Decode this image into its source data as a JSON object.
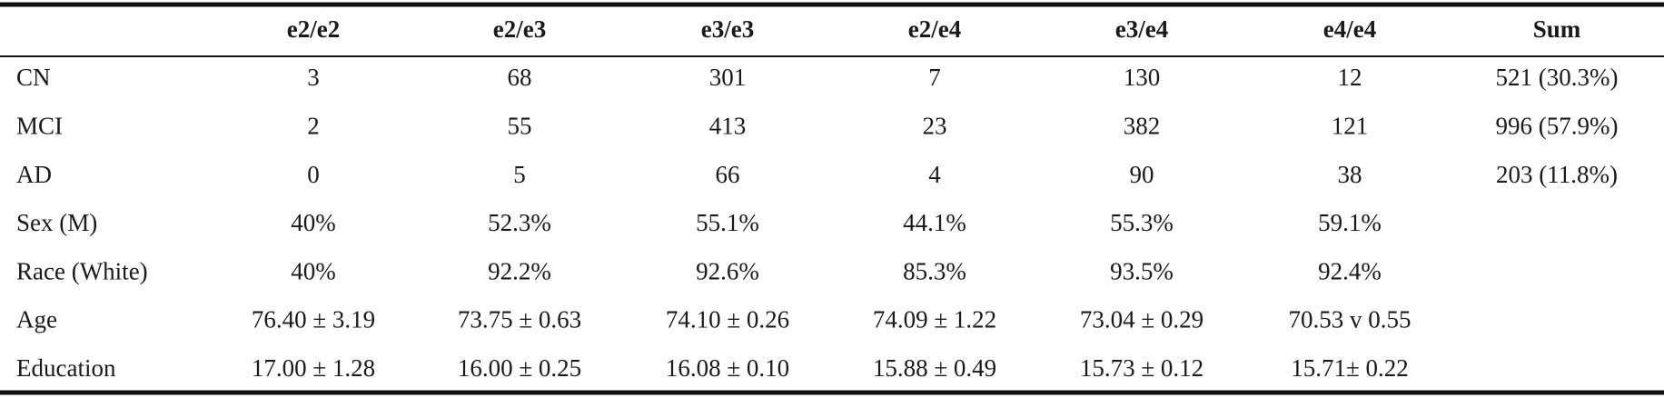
{
  "table": {
    "header": [
      "e2/e2",
      "e2/e3",
      "e3/e3",
      "e2/e4",
      "e3/e4",
      "e4/e4",
      "Sum"
    ],
    "rows": [
      {
        "label": "CN",
        "cells": [
          "3",
          "68",
          "301",
          "7",
          "130",
          "12",
          "521 (30.3%)"
        ]
      },
      {
        "label": "MCI",
        "cells": [
          "2",
          "55",
          "413",
          "23",
          "382",
          "121",
          "996 (57.9%)"
        ]
      },
      {
        "label": "AD",
        "cells": [
          "0",
          "5",
          "66",
          "4",
          "90",
          "38",
          "203 (11.8%)"
        ]
      },
      {
        "label": "Sex (M)",
        "cells": [
          "40%",
          "52.3%",
          "55.1%",
          "44.1%",
          "55.3%",
          "59.1%"
        ]
      },
      {
        "label": "Race (White)",
        "cells": [
          "40%",
          "92.2%",
          "92.6%",
          "85.3%",
          "93.5%",
          "92.4%"
        ]
      },
      {
        "label": "Age",
        "cells": [
          "76.40 ± 3.19",
          "73.75 ± 0.63",
          "74.10 ± 0.26",
          "74.09 ± 1.22",
          "73.04 ± 0.29",
          "70.53 v 0.55"
        ]
      },
      {
        "label": "Education",
        "cells": [
          "17.00 ± 1.28",
          "16.00 ± 0.25",
          "16.08 ± 0.10",
          "15.88 ± 0.49",
          "15.73 ± 0.12",
          "15.71± 0.22"
        ]
      }
    ]
  }
}
